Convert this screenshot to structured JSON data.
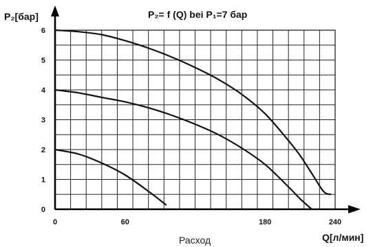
{
  "chart_data": {
    "type": "line",
    "title": "P₂= f (Q) bei P₁=7 бар",
    "ylabel": "P₂[бар]",
    "xlabel_right": "Q[л/мин]",
    "xlabel_center": "Расход",
    "xlim": [
      0,
      240
    ],
    "ylim": [
      0,
      6
    ],
    "x_ticks": [
      0,
      60,
      180,
      240
    ],
    "x_tick_labels": [
      "0",
      "60",
      "180",
      "240"
    ],
    "y_ticks": [
      0,
      1,
      2,
      3,
      4,
      5,
      6
    ],
    "y_tick_labels": [
      "0",
      "1",
      "2",
      "3",
      "4",
      "5",
      "6"
    ],
    "grid": true,
    "series": [
      {
        "x": [
          0,
          20,
          40,
          60,
          80,
          100,
          120,
          140,
          160,
          180,
          200,
          210,
          220,
          230,
          236
        ],
        "y": [
          6.0,
          5.95,
          5.85,
          5.65,
          5.4,
          5.1,
          4.75,
          4.35,
          3.85,
          3.2,
          2.3,
          1.8,
          1.2,
          0.6,
          0.5
        ]
      },
      {
        "x": [
          0,
          20,
          40,
          60,
          80,
          100,
          120,
          140,
          160,
          180,
          200,
          210,
          220
        ],
        "y": [
          4.0,
          3.9,
          3.75,
          3.6,
          3.4,
          3.15,
          2.85,
          2.5,
          2.05,
          1.5,
          0.75,
          0.35,
          0.0
        ]
      },
      {
        "x": [
          0,
          20,
          40,
          60,
          80,
          95
        ],
        "y": [
          2.0,
          1.85,
          1.55,
          1.15,
          0.6,
          0.15
        ]
      }
    ]
  }
}
